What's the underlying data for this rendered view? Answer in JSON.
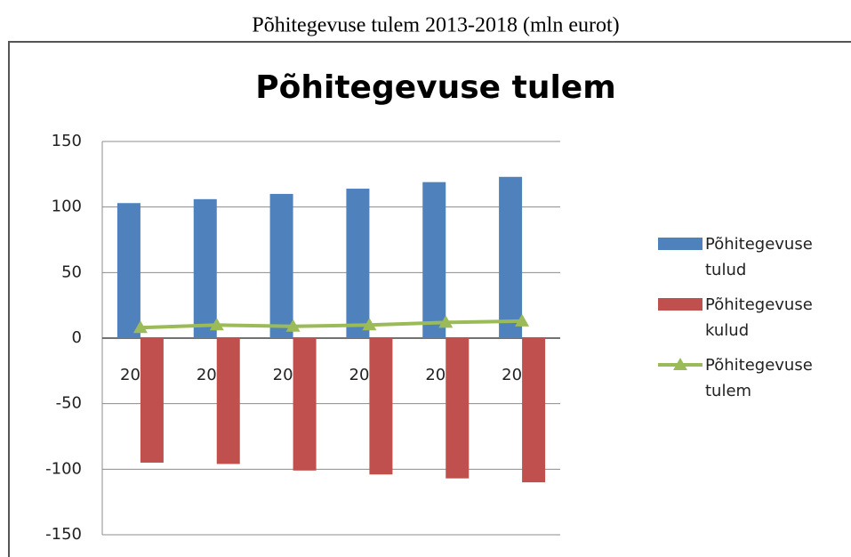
{
  "caption": "Põhitegevuse tulem 2013-2018 (mln eurot)",
  "chart_data": {
    "type": "bar_line",
    "title": "Põhitegevuse tulem",
    "categories": [
      "2013",
      "2014",
      "2015",
      "2016",
      "2017",
      "2018"
    ],
    "series": [
      {
        "name": "Põhitegevuse tulud",
        "type": "bar",
        "color": "#4f81bd",
        "values": [
          103,
          106,
          110,
          114,
          119,
          123
        ]
      },
      {
        "name": "Põhitegevuse kulud",
        "type": "bar",
        "color": "#c0504d",
        "values": [
          -95,
          -96,
          -101,
          -104,
          -107,
          -110
        ]
      },
      {
        "name": "Põhitegevuse tulem",
        "type": "line",
        "color": "#9bbb59",
        "values": [
          8,
          10,
          9,
          10,
          12,
          13
        ]
      }
    ],
    "ylim": [
      -150,
      150
    ],
    "yticks": [
      -150,
      -100,
      -50,
      0,
      50,
      100,
      150
    ],
    "grid": true,
    "legend": "right"
  }
}
